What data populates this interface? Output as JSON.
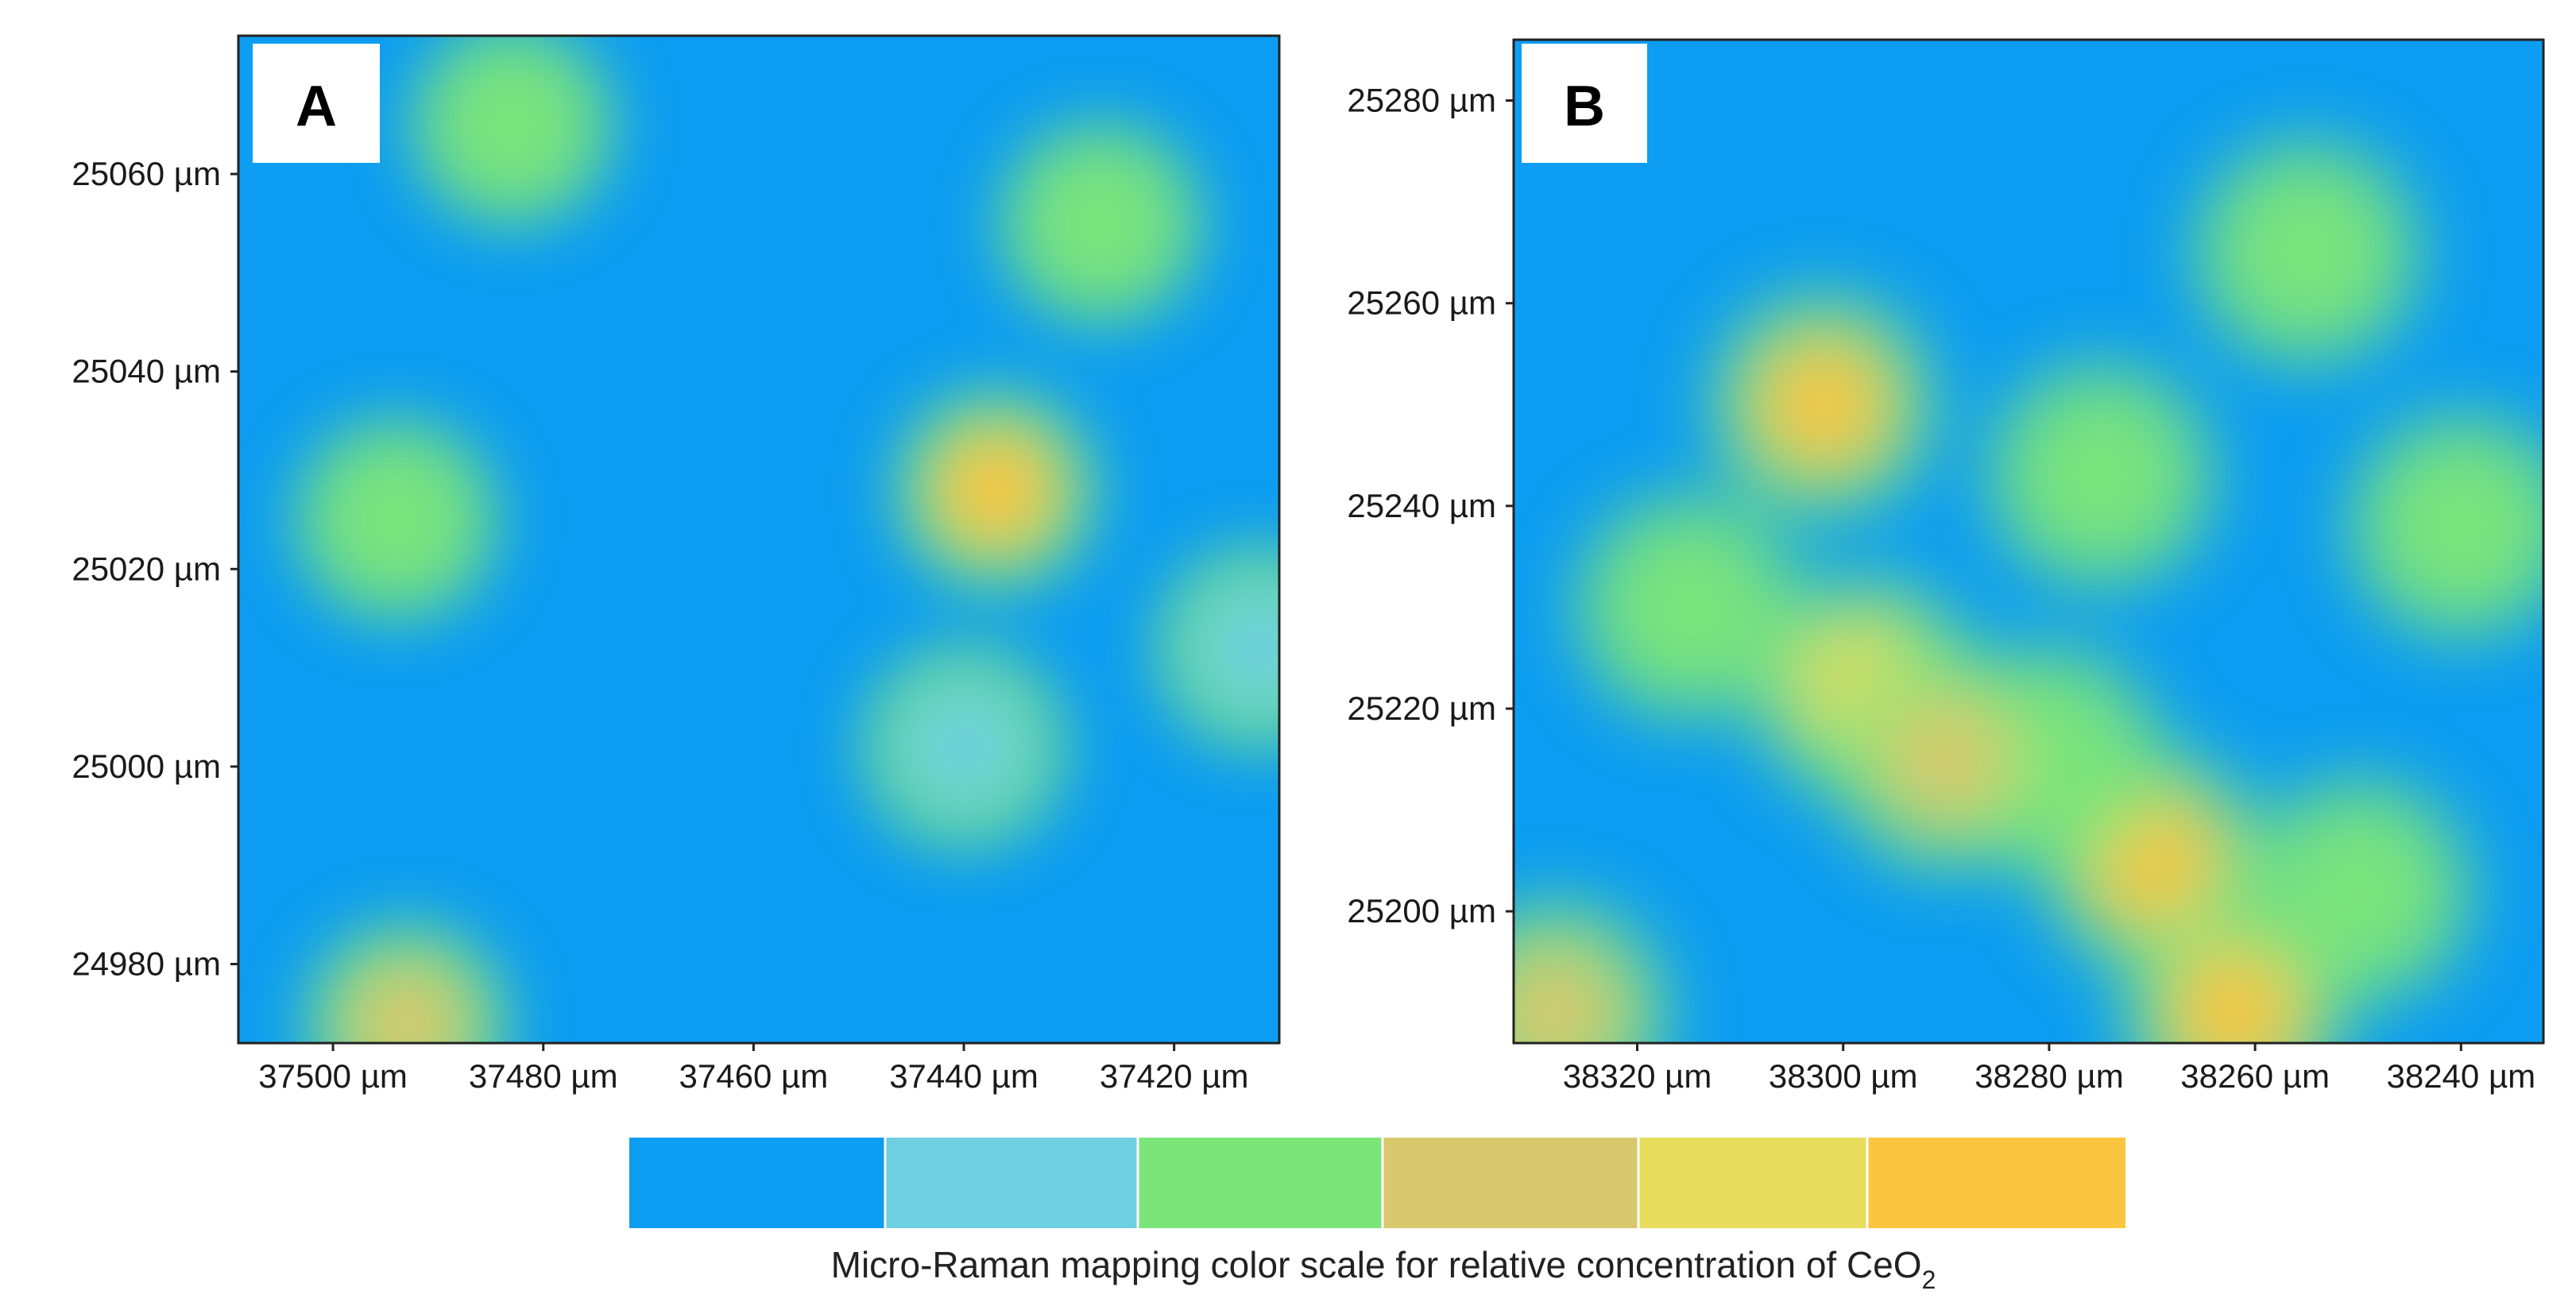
{
  "chart_data": [
    {
      "type": "heatmap",
      "panel_label": "A",
      "x_tick_labels": [
        "37500 µm",
        "37480 µm",
        "37460 µm",
        "37440 µm",
        "37420 µm"
      ],
      "y_tick_labels": [
        "25060 µm",
        "25040 µm",
        "25020 µm",
        "25000 µm",
        "24980 µm"
      ],
      "x_ticks": [
        37500,
        37480,
        37460,
        37440,
        37420
      ],
      "y_ticks": [
        25060,
        25040,
        25020,
        25000,
        24980
      ],
      "xlim": [
        37509,
        37410
      ],
      "ylim": [
        24972,
        25074
      ],
      "x_axis_reversed": true,
      "grid": false,
      "hotspots": [
        {
          "x": 37483,
          "y": 25065,
          "level": 3
        },
        {
          "x": 37437,
          "y": 25028,
          "level": 6
        },
        {
          "x": 37494,
          "y": 25025,
          "level": 3
        },
        {
          "x": 37427,
          "y": 25055,
          "level": 3
        },
        {
          "x": 37412,
          "y": 25012,
          "level": 2
        },
        {
          "x": 37493,
          "y": 24974,
          "level": 4
        },
        {
          "x": 37440,
          "y": 25002,
          "level": 2
        }
      ]
    },
    {
      "type": "heatmap",
      "panel_label": "B",
      "x_tick_labels": [
        "38320 µm",
        "38300 µm",
        "38280 µm",
        "38260 µm",
        "38240 µm"
      ],
      "y_tick_labels": [
        "25280 µm",
        "25260 µm",
        "25240 µm",
        "25220 µm",
        "25200 µm"
      ],
      "x_ticks": [
        38320,
        38300,
        38280,
        38260,
        38240
      ],
      "y_ticks": [
        25280,
        25260,
        25240,
        25220,
        25200
      ],
      "xlim": [
        38332,
        38232
      ],
      "ylim": [
        25187,
        25286
      ],
      "x_axis_reversed": true,
      "grid": false,
      "hotspots": [
        {
          "x": 38302,
          "y": 25250,
          "level": 6
        },
        {
          "x": 38315,
          "y": 25230,
          "level": 3
        },
        {
          "x": 38298,
          "y": 25222,
          "level": 5
        },
        {
          "x": 38270,
          "y": 25205,
          "level": 6
        },
        {
          "x": 38262,
          "y": 25190,
          "level": 6
        },
        {
          "x": 38280,
          "y": 25215,
          "level": 3
        },
        {
          "x": 38255,
          "y": 25265,
          "level": 3
        },
        {
          "x": 38275,
          "y": 25243,
          "level": 3
        },
        {
          "x": 38240,
          "y": 25238,
          "level": 3
        },
        {
          "x": 38328,
          "y": 25190,
          "level": 4
        },
        {
          "x": 38250,
          "y": 25202,
          "level": 3
        },
        {
          "x": 38290,
          "y": 25215,
          "level": 4
        }
      ]
    }
  ],
  "color_scale": {
    "colors": [
      "#0d9df2",
      "#6dcfe0",
      "#7ce57a",
      "#d8c86d",
      "#e8dc5c",
      "#fbc63f"
    ],
    "caption_main": "Micro-Raman mapping color scale for relative concentration of CeO",
    "caption_subscript": "2"
  }
}
